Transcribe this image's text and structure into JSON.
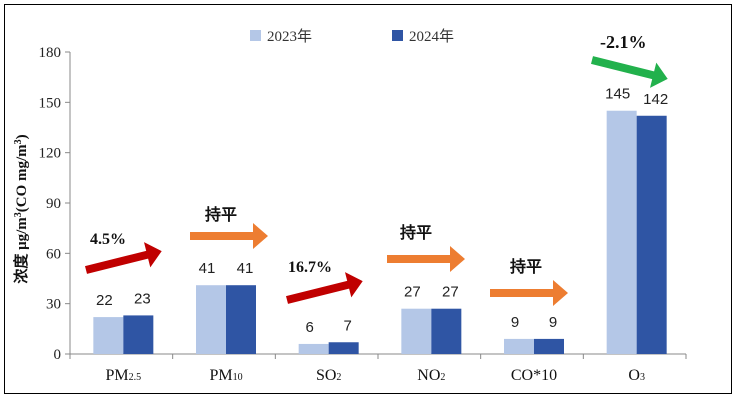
{
  "chart_data": {
    "type": "bar",
    "categories": [
      {
        "main": "PM",
        "sub": "2.5"
      },
      {
        "main": "PM",
        "sub": "10"
      },
      {
        "main": "SO",
        "sub": "2"
      },
      {
        "main": "NO",
        "sub": "2"
      },
      {
        "main": "CO*10",
        "sub": ""
      },
      {
        "main": "O",
        "sub": "3"
      }
    ],
    "series": [
      {
        "name": "2023年",
        "color": "#b4c7e7",
        "values": [
          22,
          41,
          6,
          27,
          9,
          145
        ]
      },
      {
        "name": "2024年",
        "color": "#2f55a4",
        "values": [
          23,
          41,
          7,
          27,
          9,
          142
        ]
      }
    ],
    "ylabel": "浓度 μg/m³(CO mg/m³)",
    "ylim": [
      0,
      180
    ],
    "yticks": [
      0,
      30,
      60,
      90,
      120,
      150,
      180
    ],
    "grid": false,
    "legend": "top-center",
    "annotations": [
      {
        "category": 0,
        "text": "4.5%",
        "arrow": "up",
        "color": "#c00000"
      },
      {
        "category": 1,
        "text": "持平",
        "arrow": "flat",
        "color": "#ed7d31"
      },
      {
        "category": 2,
        "text": "16.7%",
        "arrow": "up",
        "color": "#c00000"
      },
      {
        "category": 3,
        "text": "持平",
        "arrow": "flat",
        "color": "#ed7d31"
      },
      {
        "category": 4,
        "text": "持平",
        "arrow": "flat",
        "color": "#ed7d31"
      },
      {
        "category": 5,
        "text": "-2.1%",
        "arrow": "down",
        "color": "#22b14c"
      }
    ]
  }
}
